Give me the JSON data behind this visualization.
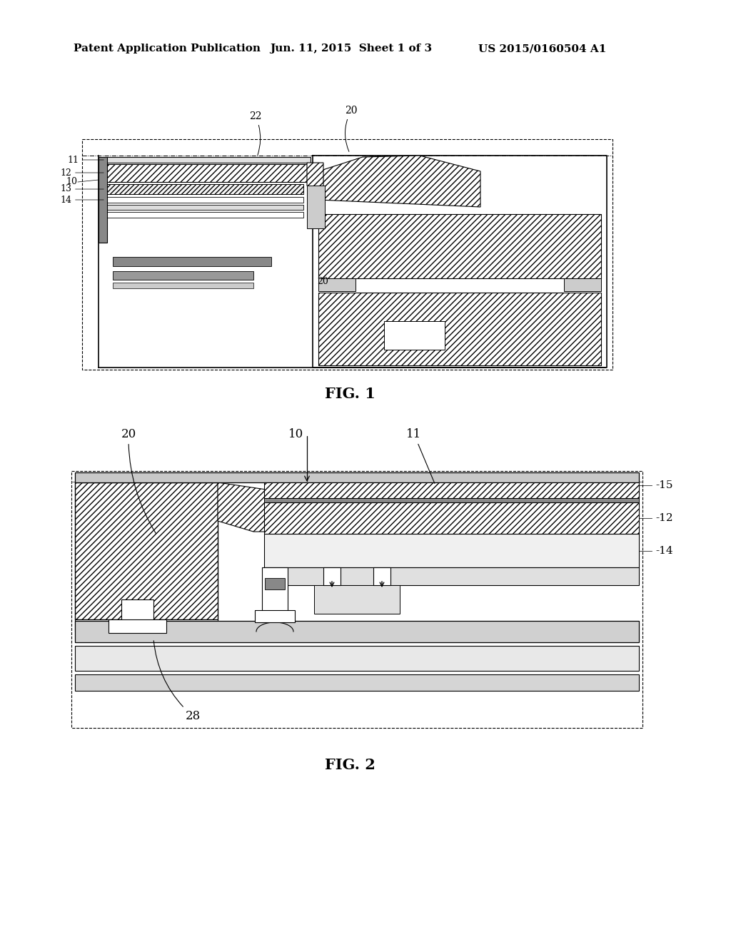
{
  "background_color": "#ffffff",
  "header_left": "Patent Application Publication",
  "header_center": "Jun. 11, 2015  Sheet 1 of 3",
  "header_right": "US 2015/0160504 A1",
  "fig1_label": "FIG. 1",
  "fig2_label": "FIG. 2",
  "header_fontsize": 11,
  "fig_label_fontsize": 15,
  "annot_fontsize": 11,
  "small_fontsize": 9
}
